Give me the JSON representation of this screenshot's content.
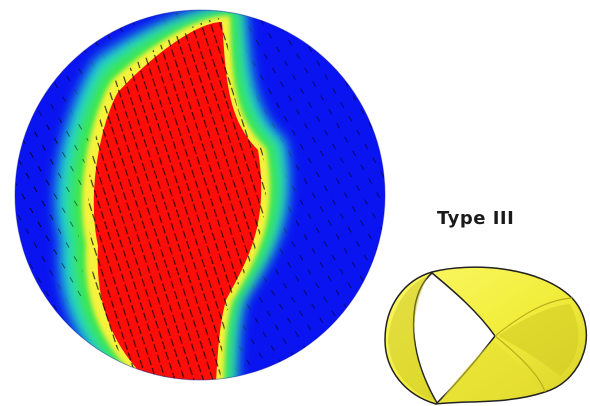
{
  "figure": {
    "type_label": "Type III",
    "colors": {
      "blue": "#0a14f0",
      "red": "#ff0d08",
      "yellow": "#f7f23a",
      "green": "#2ee84a",
      "valve": "#f2ee3c",
      "valve_shadow": "#c9c21f"
    },
    "icons": [
      "flow-field-disk",
      "valve-leaflet"
    ]
  }
}
